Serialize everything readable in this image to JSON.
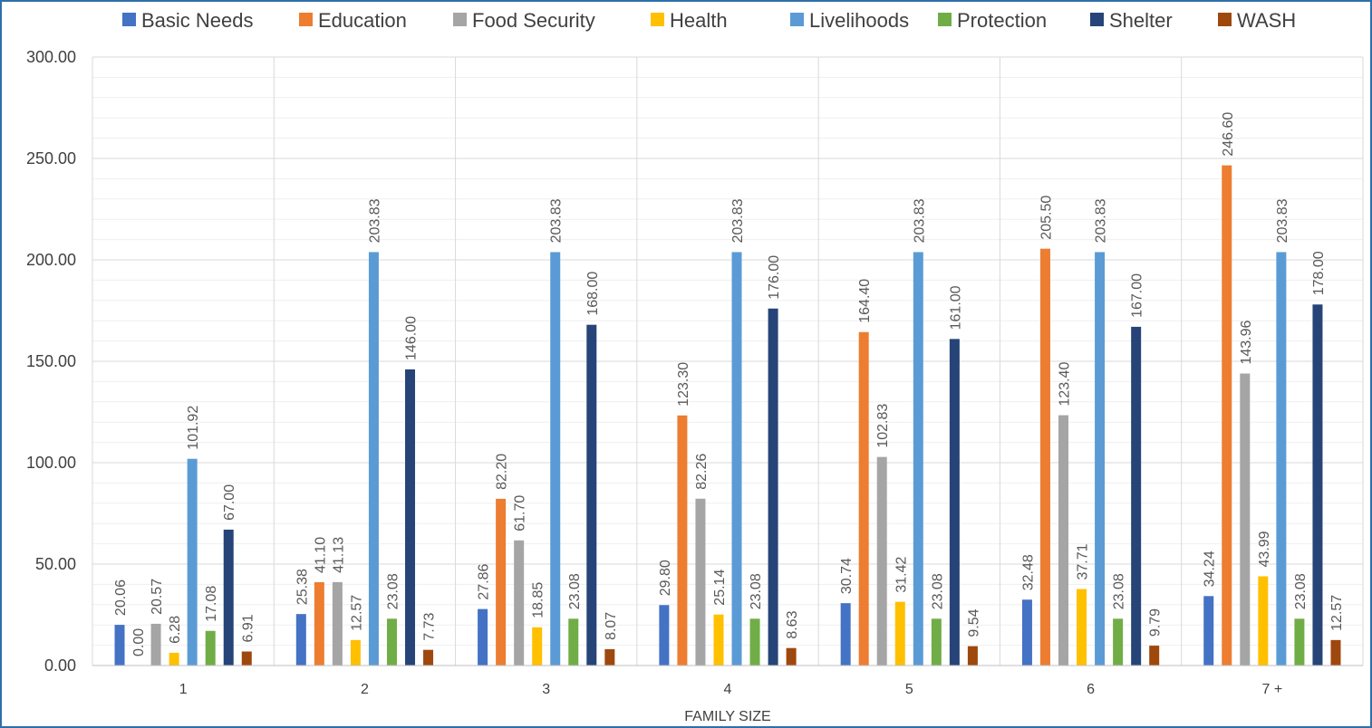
{
  "chart_data": {
    "type": "bar",
    "title": "",
    "xlabel": "FAMILY SIZE",
    "ylabel": "",
    "ylim": [
      0,
      300
    ],
    "yticks": [
      "0.00",
      "50.00",
      "100.00",
      "150.00",
      "200.00",
      "250.00",
      "300.00"
    ],
    "grid": true,
    "legend_position": "top",
    "categories": [
      "1",
      "2",
      "3",
      "4",
      "5",
      "6",
      "7 +"
    ],
    "series": [
      {
        "name": "Basic Needs",
        "color": "#4472c4",
        "values": [
          20.06,
          25.38,
          27.86,
          29.8,
          30.74,
          32.48,
          34.24
        ],
        "labels": [
          "20.06",
          "25.38",
          "27.86",
          "29.80",
          "30.74",
          "32.48",
          "34.24"
        ]
      },
      {
        "name": "Education",
        "color": "#ed7d31",
        "values": [
          0.0,
          41.1,
          82.2,
          123.3,
          164.4,
          205.5,
          246.6
        ],
        "labels": [
          "0.00",
          "41.10",
          "82.20",
          "123.30",
          "164.40",
          "205.50",
          "246.60"
        ]
      },
      {
        "name": "Food Security",
        "color": "#a5a5a5",
        "values": [
          20.57,
          41.13,
          61.7,
          82.26,
          102.83,
          123.4,
          143.96
        ],
        "labels": [
          "20.57",
          "41.13",
          "61.70",
          "82.26",
          "102.83",
          "123.40",
          "143.96"
        ]
      },
      {
        "name": "Health",
        "color": "#ffc000",
        "values": [
          6.28,
          12.57,
          18.85,
          25.14,
          31.42,
          37.71,
          43.99
        ],
        "labels": [
          "6.28",
          "12.57",
          "18.85",
          "25.14",
          "31.42",
          "37.71",
          "43.99"
        ]
      },
      {
        "name": "Livelihoods",
        "color": "#5b9bd5",
        "values": [
          101.92,
          203.83,
          203.83,
          203.83,
          203.83,
          203.83,
          203.83
        ],
        "labels": [
          "101.92",
          "203.83",
          "203.83",
          "203.83",
          "203.83",
          "203.83",
          "203.83"
        ]
      },
      {
        "name": "Protection",
        "color": "#70ad47",
        "values": [
          17.08,
          23.08,
          23.08,
          23.08,
          23.08,
          23.08,
          23.08
        ],
        "labels": [
          "17.08",
          "23.08",
          "23.08",
          "23.08",
          "23.08",
          "23.08",
          "23.08"
        ]
      },
      {
        "name": "Shelter",
        "color": "#264478",
        "values": [
          67.0,
          146.0,
          168.0,
          176.0,
          161.0,
          167.0,
          178.0
        ],
        "labels": [
          "67.00",
          "146.00",
          "168.00",
          "176.00",
          "161.00",
          "167.00",
          "178.00"
        ]
      },
      {
        "name": "WASH",
        "color": "#9e480e",
        "values": [
          6.91,
          7.73,
          8.07,
          8.63,
          9.54,
          9.79,
          12.57
        ],
        "labels": [
          "6.91",
          "7.73",
          "8.07",
          "8.63",
          "9.54",
          "9.79",
          "12.57"
        ]
      }
    ]
  }
}
